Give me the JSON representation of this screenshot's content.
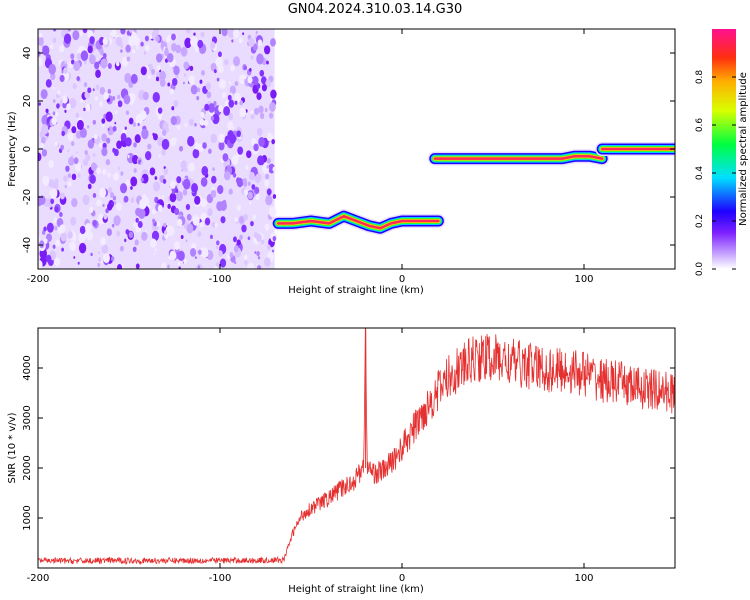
{
  "title": "GN04.2024.310.03.14.G30",
  "colors": {
    "signal_dark": "#1d00ff",
    "signal_peak": "#ff2a55",
    "noise_purple": "#7f22ff",
    "snr_line": "#e53030",
    "axis": "#000000"
  },
  "chart_data": [
    {
      "type": "heatmap",
      "name": "spectrogram",
      "xlabel": "Height of straight line (km)",
      "ylabel": "Frequency (Hz)",
      "xlim": [
        -200,
        150
      ],
      "ylim": [
        -50,
        50
      ],
      "x_ticks": [
        -200,
        -100,
        0,
        100
      ],
      "y_ticks": [
        -40,
        -20,
        0,
        20,
        40
      ],
      "grid": false,
      "noise_region": {
        "x_range": [
          -200,
          -70
        ],
        "description_color": "purple"
      },
      "signal_segments": [
        {
          "x_start": -68,
          "x_end": 20,
          "points": [
            [
              -68,
              -31
            ],
            [
              -60,
              -31
            ],
            [
              -50,
              -30
            ],
            [
              -40,
              -31
            ],
            [
              -32,
              -28
            ],
            [
              -25,
              -30
            ],
            [
              -18,
              -32
            ],
            [
              -12,
              -33
            ],
            [
              -6,
              -31
            ],
            [
              0,
              -30
            ],
            [
              10,
              -30
            ],
            [
              20,
              -30
            ]
          ]
        },
        {
          "x_start": 18,
          "x_end": 110,
          "points": [
            [
              18,
              -4
            ],
            [
              30,
              -4
            ],
            [
              50,
              -4
            ],
            [
              70,
              -4
            ],
            [
              88,
              -4
            ],
            [
              95,
              -3
            ],
            [
              103,
              -3
            ],
            [
              110,
              -4
            ]
          ]
        },
        {
          "x_start": 110,
          "x_end": 150,
          "points": [
            [
              110,
              0
            ],
            [
              125,
              0
            ],
            [
              140,
              0
            ],
            [
              150,
              0
            ]
          ]
        }
      ],
      "colorbar": {
        "label": "Normalized spectral amplitude",
        "ticks": [
          "0.0",
          "0.2",
          "0.4",
          "0.6",
          "0.8"
        ],
        "range": [
          0,
          1
        ]
      }
    },
    {
      "type": "line",
      "name": "snr",
      "xlabel": "Height of straight line (km)",
      "ylabel": "SNR (10 * v/v)",
      "xlim": [
        -200,
        150
      ],
      "ylim": [
        0,
        4800
      ],
      "x_ticks": [
        -200,
        -100,
        0,
        100
      ],
      "y_ticks": [
        1000,
        2000,
        3000,
        4000
      ],
      "grid": false,
      "series": [
        {
          "color": "#e53030",
          "x": [
            -200,
            -180,
            -160,
            -140,
            -120,
            -100,
            -80,
            -65,
            -60,
            -55,
            -50,
            -45,
            -40,
            -35,
            -30,
            -25,
            -21,
            -20,
            -19,
            -15,
            -10,
            -5,
            0,
            5,
            10,
            15,
            20,
            25,
            30,
            35,
            40,
            50,
            60,
            70,
            80,
            90,
            100,
            110,
            120,
            130,
            140,
            150
          ],
          "y": [
            150,
            140,
            150,
            145,
            150,
            150,
            150,
            160,
            700,
            1050,
            1200,
            1300,
            1400,
            1550,
            1650,
            1800,
            2100,
            4750,
            2000,
            1900,
            1950,
            2150,
            2400,
            2700,
            3000,
            3300,
            3550,
            3800,
            3950,
            4050,
            4200,
            4200,
            4100,
            4050,
            3950,
            3950,
            3900,
            3750,
            3700,
            3600,
            3550,
            3500
          ]
        }
      ]
    }
  ]
}
